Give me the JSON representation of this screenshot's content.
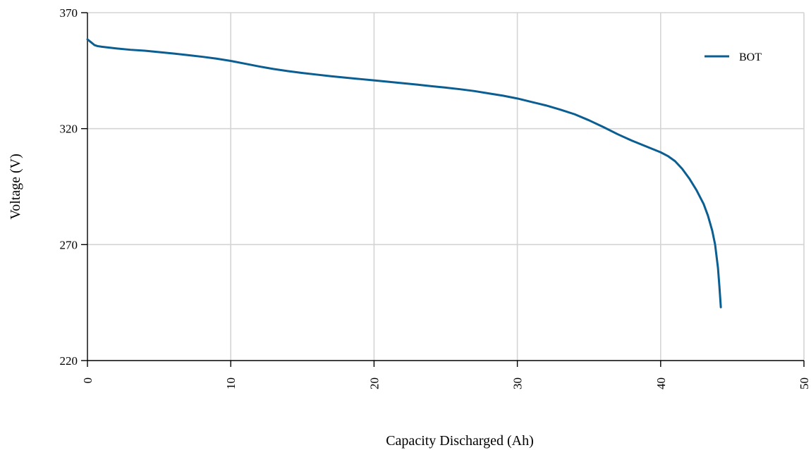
{
  "chart_data": {
    "type": "line",
    "title": "",
    "xlabel": "Capacity Discharged (Ah)",
    "ylabel": "Voltage (V)",
    "xlim": [
      0,
      50
    ],
    "ylim": [
      220,
      370
    ],
    "xticks": [
      0,
      10,
      20,
      30,
      40,
      50
    ],
    "yticks": [
      220,
      270,
      320,
      370
    ],
    "grid": true,
    "legend": "top-right",
    "series": [
      {
        "name": "BOT",
        "color": "#0b5e92",
        "x": [
          0,
          0.1,
          0.2,
          0.3,
          0.5,
          0.7,
          1,
          2,
          3,
          4,
          5,
          6,
          7,
          8,
          9,
          10,
          11,
          12,
          13,
          14,
          15,
          16,
          17,
          18,
          19,
          20,
          21,
          22,
          23,
          24,
          25,
          26,
          27,
          28,
          29,
          30,
          31,
          32,
          33,
          34,
          35,
          36,
          37,
          38,
          39,
          40,
          40.5,
          41,
          41.5,
          42,
          42.5,
          43,
          43.3,
          43.6,
          43.8,
          44,
          44.1,
          44.2
        ],
        "y": [
          358.5,
          358,
          357.5,
          357,
          356,
          355.6,
          355.3,
          354.6,
          354,
          353.6,
          353,
          352.4,
          351.7,
          351,
          350.2,
          349.2,
          348,
          346.8,
          345.7,
          344.8,
          344,
          343.3,
          342.6,
          342,
          341.4,
          340.8,
          340.2,
          339.6,
          339,
          338.3,
          337.7,
          337,
          336.2,
          335.2,
          334.2,
          333,
          331.5,
          330,
          328.2,
          326.2,
          323.6,
          320.7,
          317.6,
          314.8,
          312.3,
          309.8,
          308.2,
          306,
          302.7,
          298.5,
          293.5,
          287.5,
          282.5,
          276,
          270,
          260,
          252,
          243
        ]
      }
    ]
  }
}
